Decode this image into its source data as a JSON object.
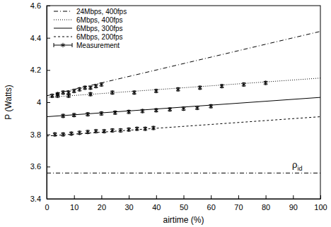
{
  "chart_data": {
    "type": "line",
    "x_label": "airtime (%)",
    "y_label": "P (Watts)",
    "xlim": [
      0,
      100
    ],
    "xticks": [
      0,
      10,
      20,
      30,
      40,
      50,
      60,
      70,
      80,
      90,
      100
    ],
    "ylim": [
      3.4,
      4.6
    ],
    "yticks": [
      3.4,
      3.6,
      3.8,
      4,
      4.2,
      4.4,
      4.6
    ],
    "legend": "top-left",
    "reference_lines": [
      {
        "label": "ρ",
        "label_sub": "id",
        "value": 3.56,
        "line_style": "dashdot",
        "color": "#000000"
      }
    ],
    "series": [
      {
        "name": "24Mbps, 400fps",
        "type": "line",
        "line_style": "dashdot",
        "color": "#000000",
        "x": [
          0,
          100
        ],
        "values": [
          4.04,
          4.44
        ]
      },
      {
        "name": "6Mbps, 400fps",
        "type": "line",
        "line_style": "dotted",
        "color": "#000000",
        "x": [
          0,
          100
        ],
        "values": [
          4.03,
          4.15
        ]
      },
      {
        "name": "6Mbps, 300fps",
        "type": "line",
        "line_style": "solid",
        "color": "#000000",
        "x": [
          0,
          100
        ],
        "values": [
          3.91,
          4.03
        ]
      },
      {
        "name": "6Mbps, 200fps",
        "type": "line",
        "line_style": "dashed",
        "color": "#000000",
        "x": [
          0,
          100
        ],
        "values": [
          3.79,
          3.91
        ]
      },
      {
        "name": "Measurement",
        "type": "scatter",
        "marker": "asterisk",
        "color": "#000000",
        "x": [
          2,
          4,
          6,
          8,
          10,
          12,
          14,
          16,
          18,
          20
        ],
        "values": [
          4.04,
          4.05,
          4.06,
          4.06,
          4.07,
          4.08,
          4.09,
          4.09,
          4.1,
          4.11
        ],
        "errors": [
          0.01,
          0.01,
          0.01,
          0.01,
          0.01,
          0.01,
          0.01,
          0.01,
          0.01,
          0.01
        ]
      },
      {
        "type": "scatter",
        "marker": "asterisk",
        "color": "#000000",
        "x": [
          4,
          8,
          16,
          24,
          32,
          40,
          48,
          56,
          64,
          72,
          80
        ],
        "values": [
          4.04,
          4.04,
          4.05,
          4.06,
          4.06,
          4.07,
          4.08,
          4.09,
          4.1,
          4.11,
          4.12
        ],
        "errors": [
          0.01,
          0.01,
          0.01,
          0.01,
          0.01,
          0.01,
          0.01,
          0.01,
          0.01,
          0.01,
          0.01
        ]
      },
      {
        "type": "scatter",
        "marker": "asterisk",
        "color": "#000000",
        "x": [
          6,
          10,
          15,
          20,
          25,
          30,
          35,
          40,
          45,
          50,
          55,
          60
        ],
        "values": [
          3.915,
          3.92,
          3.925,
          3.93,
          3.935,
          3.94,
          3.945,
          3.95,
          3.955,
          3.96,
          3.965,
          3.975
        ],
        "errors": [
          0.01,
          0.01,
          0.01,
          0.01,
          0.01,
          0.01,
          0.01,
          0.01,
          0.01,
          0.01,
          0.01,
          0.01
        ]
      },
      {
        "type": "scatter",
        "marker": "asterisk",
        "color": "#000000",
        "x": [
          3,
          6,
          9,
          12,
          15,
          18,
          21,
          24,
          27,
          30,
          33,
          36,
          39
        ],
        "values": [
          3.8,
          3.8,
          3.805,
          3.81,
          3.815,
          3.82,
          3.82,
          3.825,
          3.825,
          3.83,
          3.835,
          3.835,
          3.84
        ],
        "errors": [
          0.01,
          0.01,
          0.01,
          0.01,
          0.01,
          0.01,
          0.01,
          0.01,
          0.01,
          0.01,
          0.01,
          0.01,
          0.01
        ]
      }
    ]
  }
}
